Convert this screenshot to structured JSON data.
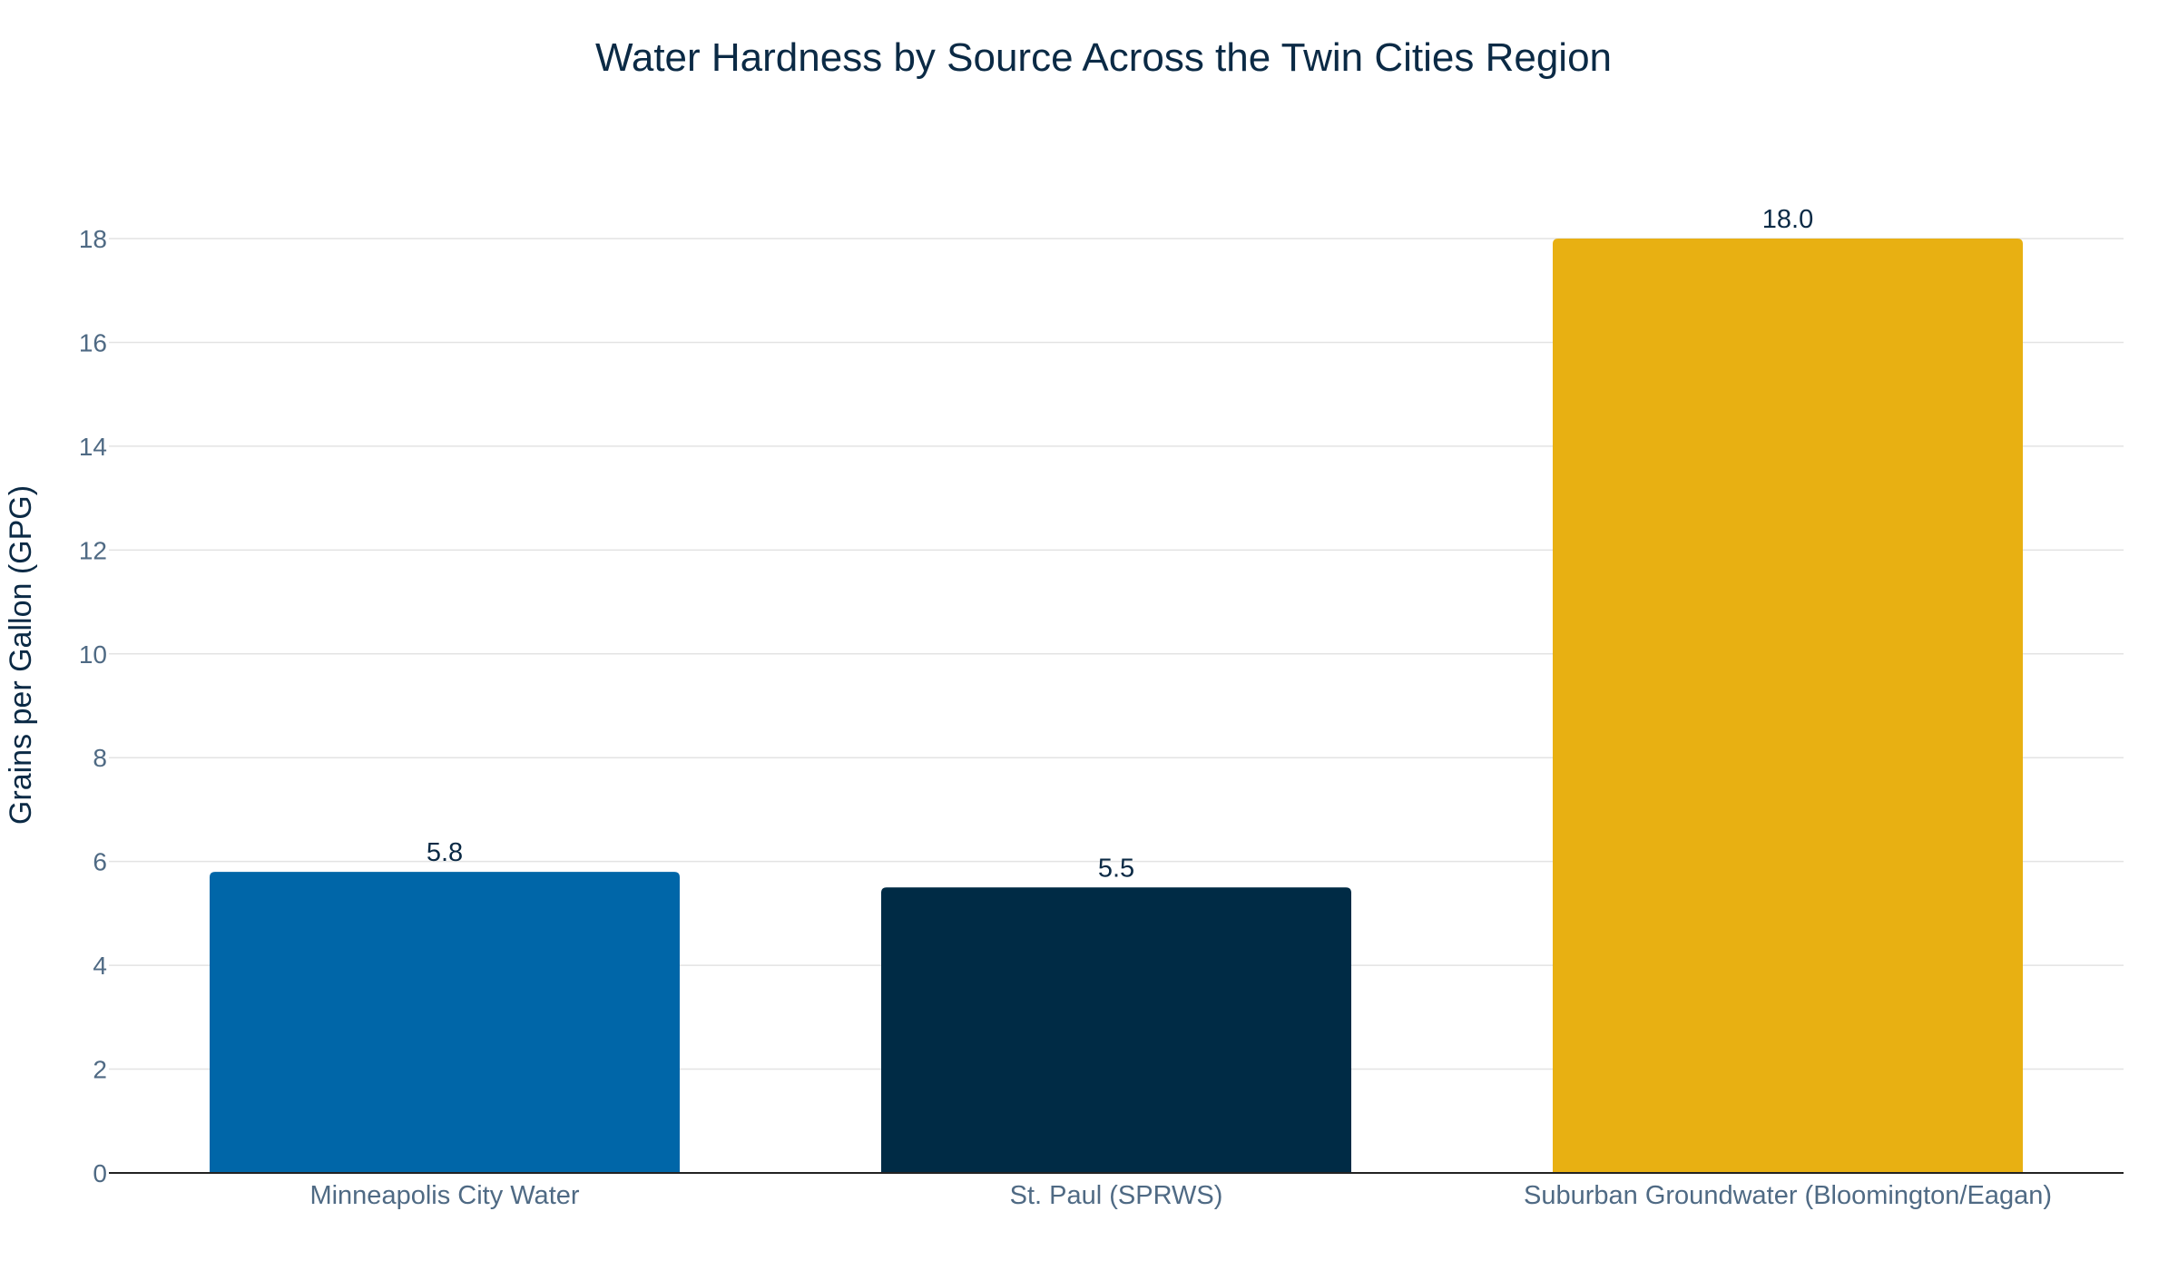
{
  "chart_data": {
    "type": "bar",
    "title": "Water Hardness by Source Across the Twin Cities Region",
    "xlabel": "",
    "ylabel": "Grains per Gallon (GPG)",
    "categories": [
      "Minneapolis City Water",
      "St. Paul (SPRWS)",
      "Suburban Groundwater (Bloomington/Eagan)"
    ],
    "values": [
      5.8,
      5.5,
      18.0
    ],
    "value_labels": [
      "5.8",
      "5.5",
      "18.0"
    ],
    "colors": [
      "#0066a8",
      "#002b45",
      "#e8b012"
    ],
    "ylim": [
      0,
      18
    ],
    "yticks": [
      0,
      2,
      4,
      6,
      8,
      10,
      12,
      14,
      16,
      18
    ],
    "grid": true,
    "legend": "none"
  }
}
